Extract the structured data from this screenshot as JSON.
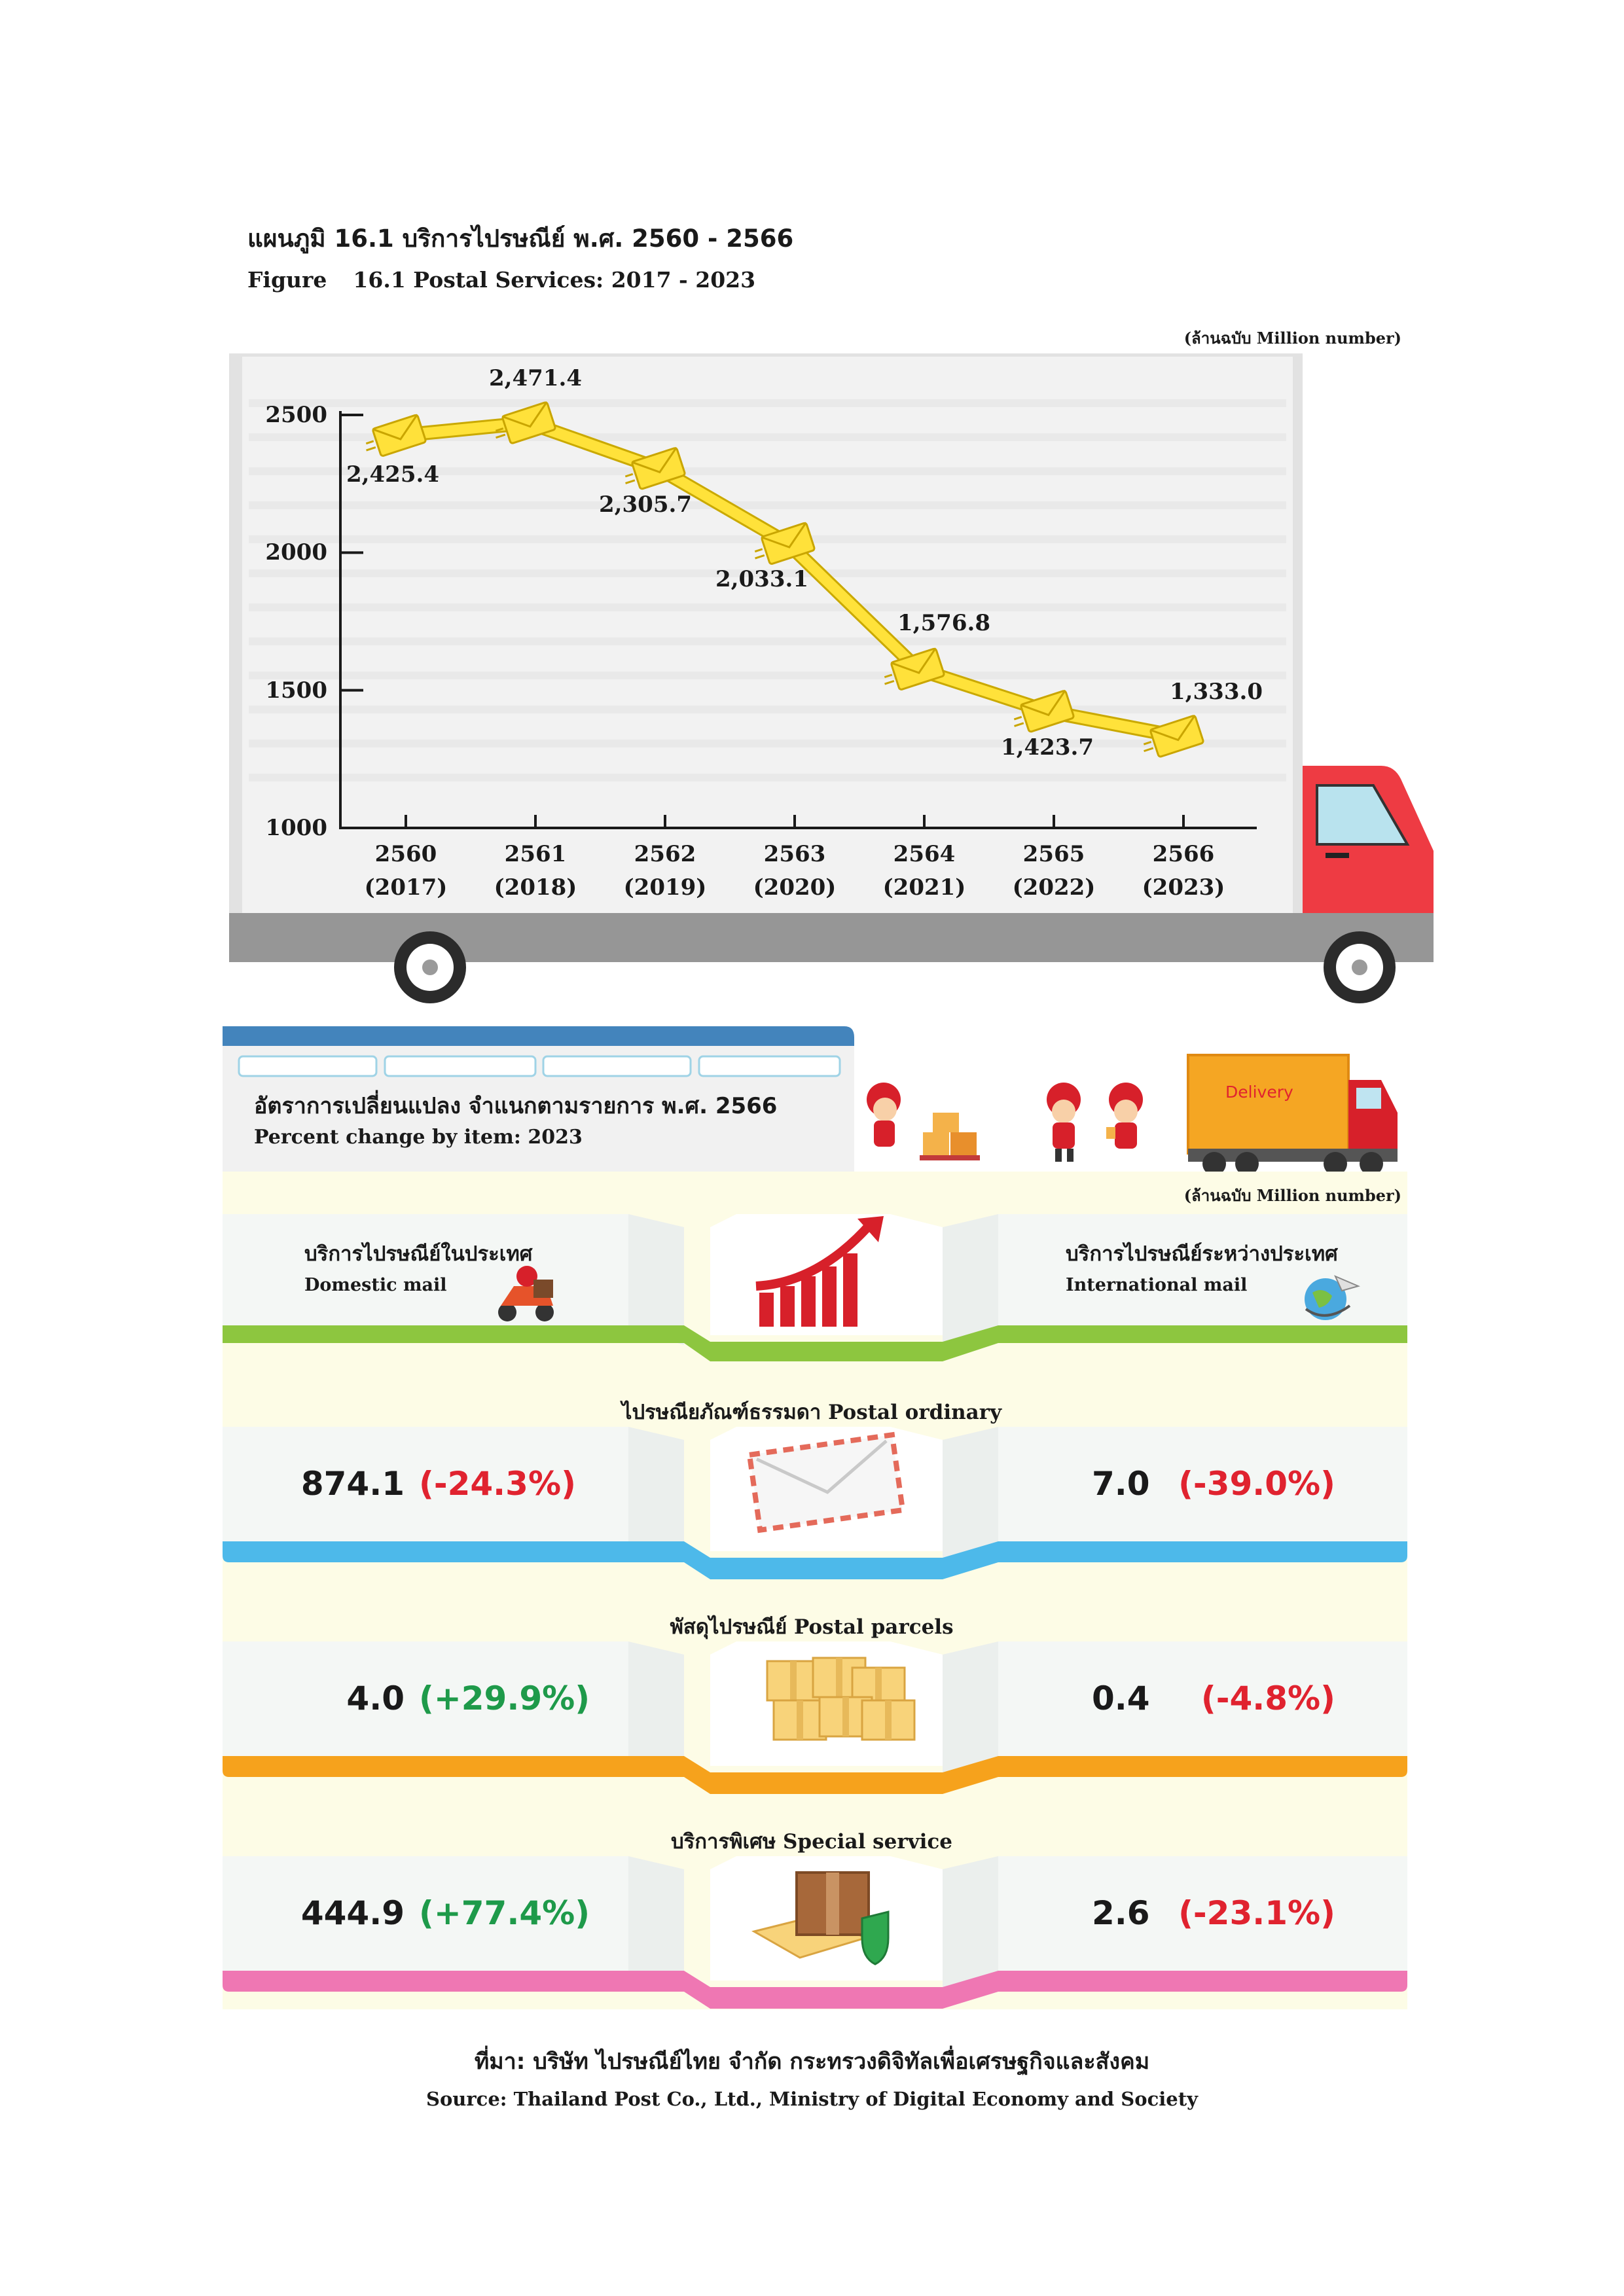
{
  "header": {
    "title_th": "แผนภูมิ 16.1 บริการไปรษณีย์ พ.ศ. 2560 - 2566",
    "title_en_label": "Figure",
    "title_en_text": "16.1 Postal Services: 2017 - 2023",
    "unit": "(ล้านฉบับ  Million number)"
  },
  "chart_data": {
    "type": "line",
    "title": "16.1 Postal Services: 2017 - 2023",
    "unit": "(ล้านฉบับ  Million number)",
    "categories": [
      "2560\n(2017)",
      "2561\n(2018)",
      "2562\n(2019)",
      "2563\n(2020)",
      "2564\n(2021)",
      "2565\n(2022)",
      "2566\n(2023)"
    ],
    "x_th": [
      "2560",
      "2561",
      "2562",
      "2563",
      "2564",
      "2565",
      "2566"
    ],
    "x_en": [
      "(2017)",
      "(2018)",
      "(2019)",
      "(2020)",
      "(2021)",
      "(2022)",
      "(2023)"
    ],
    "values": [
      2425.4,
      2471.4,
      2305.7,
      2033.1,
      1576.8,
      1423.7,
      1333.0
    ],
    "value_labels": [
      "2,425.4",
      "2,471.4",
      "2,305.7",
      "2,033.1",
      "1,576.8",
      "1,423.7",
      "1,333.0"
    ],
    "ylim": [
      1000,
      2500
    ],
    "yticks": [
      1000,
      1500,
      2000,
      2500
    ],
    "ytick_labels": [
      "1000",
      "1500",
      "2000",
      "2500"
    ],
    "line_color": "#ffe23a",
    "marker": "envelope",
    "grid": true,
    "legend": "none"
  },
  "section": {
    "title_th": "อัตราการเปลี่ยนแปลง จำแนกตามรายการ พ.ศ. 2566",
    "title_en": "Percent change by item: 2023",
    "unit": "(ล้านฉบับ  Million number)",
    "truck_label": "Delivery",
    "domestic_th": "บริการไปรษณีย์ในประเทศ",
    "domestic_en": "Domestic mail",
    "international_th": "บริการไปรษณีย์ระหว่างประเทศ",
    "international_en": "International mail"
  },
  "categories": [
    {
      "label": "ไปรษณียภัณฑ์ธรรมดา Postal ordinary",
      "dom_value": "874.1",
      "dom_pct": "(-24.3%)",
      "int_value": "7.0",
      "int_pct": "(-39.0%)",
      "color": "#4db9ea",
      "icon": "envelope-icon"
    },
    {
      "label": "พัสดุไปรษณีย์ Postal parcels",
      "dom_value": "4.0",
      "dom_pct": "(+29.9%)",
      "int_value": "0.4",
      "int_pct": "(-4.8%)",
      "color": "#f6a21c",
      "icon": "boxes-icon"
    },
    {
      "label": "บริการพิเศษ Special service",
      "dom_value": "444.9",
      "dom_pct": "(+77.4%)",
      "int_value": "2.6",
      "int_pct": "(-23.1%)",
      "color": "#ef77b3",
      "icon": "secure-parcel-icon"
    }
  ],
  "source": {
    "th": "ที่มา: บริษัท ไปรษณีย์ไทย จำกัด  กระทรวงดิจิทัลเพื่อเศรษฐกิจและสังคม",
    "en": "Source: Thailand Post Co., Ltd., Ministry of Digital Economy and Society"
  },
  "colors": {
    "header_band": "#4384bc",
    "truck_red": "#ee3b43",
    "truck_body": "#f2f2f2",
    "chassis": "#969696",
    "green_band": "#8dc63f",
    "cream": "#fdfce6",
    "negative": "#e0232f",
    "positive": "#1e9a4a"
  }
}
